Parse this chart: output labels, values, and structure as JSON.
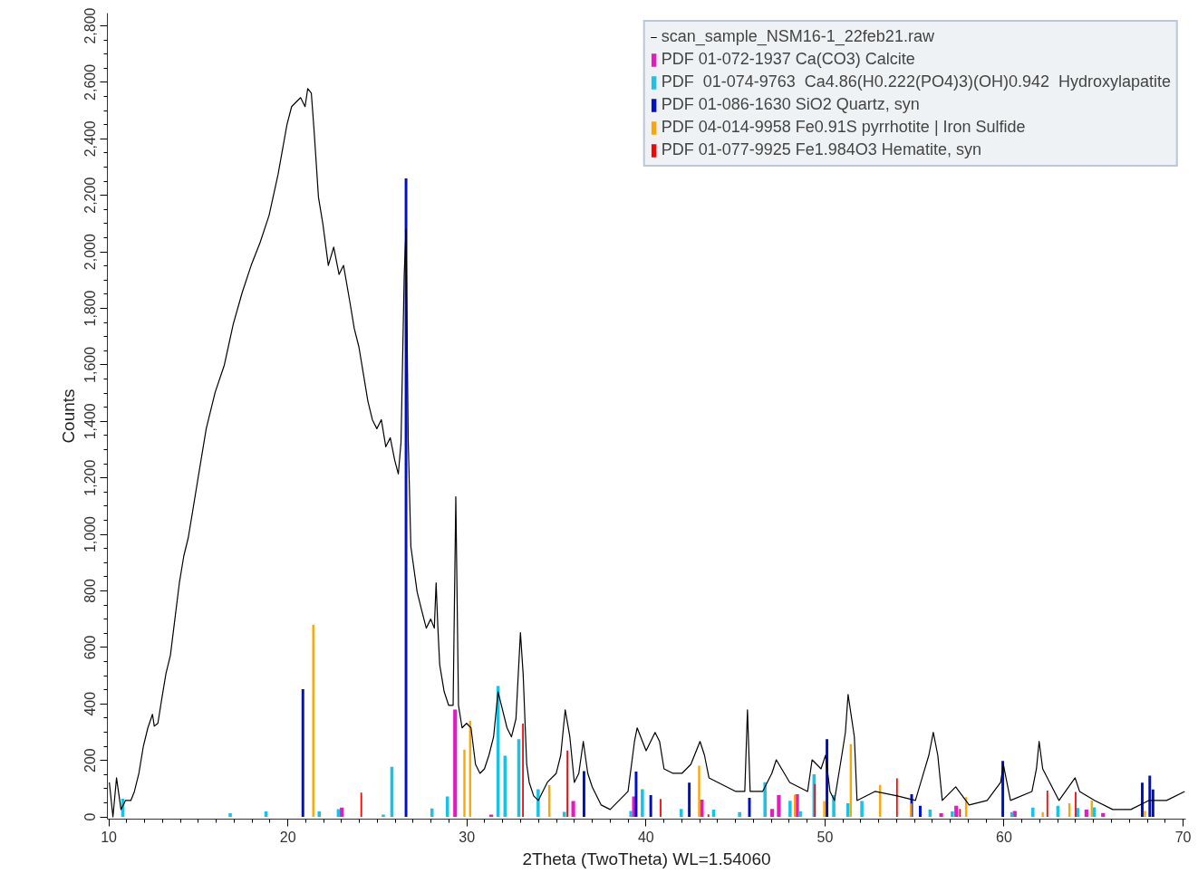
{
  "chart_data": {
    "type": "bar",
    "xlabel": "2Theta (TwoTheta) WL=1.54060",
    "ylabel": "Counts",
    "xlim": [
      9.92,
      70.15
    ],
    "ylim": [
      -8,
      2845
    ],
    "xticks": [
      10,
      20,
      30,
      40,
      50,
      60,
      70
    ],
    "yticks": [
      0,
      200,
      400,
      600,
      800,
      {
        "value": 1000,
        "label": "1,000"
      },
      {
        "value": 1200,
        "label": "1,200"
      },
      {
        "value": 1400,
        "label": "1,400"
      },
      {
        "value": 1600,
        "label": "1,600"
      },
      {
        "value": 1800,
        "label": "1,800"
      },
      {
        "value": 2000,
        "label": "2,000"
      },
      {
        "value": 2200,
        "label": "2,200"
      },
      {
        "value": 2400,
        "label": "2,400"
      },
      {
        "value": 2600,
        "label": "2,600"
      },
      {
        "value": 2800,
        "label": "2,800"
      }
    ],
    "legend": "top right",
    "series": [
      {
        "name": "scan_sample_NSM16-1_22feb21.raw",
        "type": "line",
        "color": "#000000",
        "x": [
          10.03,
          10.23,
          10.43,
          10.68,
          10.93,
          11.23,
          11.43,
          11.68,
          11.93,
          12.18,
          12.44,
          12.54,
          12.74,
          12.94,
          13.19,
          13.44,
          13.69,
          13.94,
          14.19,
          14.44,
          14.69,
          14.94,
          15.19,
          15.44,
          15.94,
          16.45,
          16.95,
          17.45,
          17.95,
          18.45,
          18.95,
          19.45,
          19.95,
          20.21,
          20.46,
          20.71,
          20.96,
          21.11,
          21.31,
          21.46,
          21.71,
          21.96,
          22.26,
          22.56,
          22.86,
          23.11,
          23.46,
          23.71,
          23.97,
          24.22,
          24.47,
          24.72,
          24.97,
          25.22,
          25.47,
          25.72,
          25.97,
          26.17,
          26.32,
          26.5,
          26.6,
          26.72,
          26.87,
          27.22,
          27.47,
          27.73,
          27.98,
          28.18,
          28.28,
          28.38,
          28.48,
          28.73,
          28.98,
          29.23,
          29.38,
          29.53,
          29.73,
          29.98,
          30.23,
          30.48,
          30.73,
          30.98,
          31.23,
          31.49,
          31.74,
          31.99,
          32.24,
          32.49,
          32.74,
          32.99,
          33.14,
          33.34,
          33.48,
          33.73,
          33.99,
          34.49,
          34.99,
          35.24,
          35.49,
          35.75,
          36.0,
          36.25,
          36.5,
          36.75,
          37.0,
          37.5,
          38.0,
          38.5,
          39.0,
          39.36,
          39.51,
          40.01,
          40.51,
          40.76,
          41.01,
          41.51,
          42.01,
          42.51,
          43.02,
          43.27,
          43.52,
          44.02,
          45.02,
          45.52,
          45.67,
          45.82,
          46.52,
          47.03,
          47.28,
          48.03,
          49.03,
          49.28,
          49.78,
          50.03,
          50.28,
          50.53,
          50.94,
          51.14,
          51.29,
          51.64,
          51.79,
          52.79,
          54.04,
          55.05,
          55.8,
          56.05,
          56.3,
          56.55,
          57.3,
          58.05,
          59.06,
          59.81,
          59.96,
          60.16,
          60.36,
          61.56,
          61.81,
          61.96,
          62.16,
          63.07,
          63.97,
          64.22,
          65.07,
          66.07,
          67.08,
          68.08,
          69.08,
          70.09
        ],
        "values": [
          122,
          0,
          138,
          26,
          58,
          58,
          90,
          154,
          250,
          315,
          363,
          321,
          331,
          411,
          507,
          572,
          700,
          828,
          924,
          989,
          1085,
          1182,
          1278,
          1374,
          1503,
          1599,
          1744,
          1856,
          1952,
          2033,
          2129,
          2273,
          2450,
          2514,
          2530,
          2546,
          2514,
          2578,
          2562,
          2434,
          2193,
          2097,
          1952,
          2017,
          1920,
          1952,
          1824,
          1728,
          1663,
          1567,
          1471,
          1406,
          1374,
          1406,
          1310,
          1342,
          1262,
          1214,
          1326,
          1920,
          2081,
          1342,
          957,
          796,
          732,
          668,
          700,
          668,
          828,
          668,
          539,
          443,
          395,
          395,
          1133,
          395,
          315,
          331,
          315,
          186,
          154,
          170,
          218,
          283,
          443,
          379,
          315,
          283,
          347,
          652,
          507,
          186,
          122,
          74,
          58,
          122,
          154,
          218,
          379,
          283,
          122,
          154,
          267,
          154,
          106,
          42,
          26,
          58,
          90,
          267,
          315,
          234,
          299,
          267,
          170,
          154,
          154,
          186,
          267,
          218,
          138,
          122,
          90,
          90,
          379,
          90,
          90,
          154,
          202,
          122,
          90,
          202,
          170,
          218,
          90,
          58,
          218,
          299,
          433,
          283,
          58,
          90,
          74,
          58,
          218,
          299,
          218,
          58,
          106,
          42,
          58,
          122,
          186,
          122,
          58,
          90,
          170,
          267,
          170,
          58,
          138,
          90,
          58,
          26,
          26,
          58,
          58,
          90
        ]
      },
      {
        "name": "PDF 01-072-1937 Ca(CO3) Calcite",
        "color": "#e619c3",
        "x": [
          23.01,
          29.34,
          31.36,
          35.94,
          39.33,
          43.12,
          47.05,
          47.42,
          48.44,
          56.49,
          57.33,
          60.6,
          64.6,
          65.53
        ],
        "values": [
          33,
          380,
          8,
          56,
          72,
          61,
          28,
          77,
          80,
          13,
          39,
          21,
          26,
          14
        ]
      },
      {
        "name": "PDF  01-074-9763  Ca4.86(H0.222(PO4)3)(OH)0.942  Hydroxylapatite",
        "color": "#19c3e6",
        "x": [
          10.78,
          16.78,
          18.78,
          21.75,
          22.82,
          25.33,
          25.81,
          28.05,
          28.91,
          31.74,
          32.13,
          32.9,
          33.98,
          35.44,
          39.16,
          39.8,
          41.97,
          43.78,
          45.23,
          46.65,
          48.05,
          48.62,
          49.39,
          50.49,
          51.28,
          52.06,
          55.87,
          57.11,
          60.44,
          61.61,
          63.01,
          64.11,
          65.04
        ],
        "values": [
          64,
          13,
          19,
          19,
          27,
          8,
          177,
          30,
          72,
          463,
          216,
          275,
          98,
          18,
          21,
          98,
          28,
          26,
          17,
          123,
          57,
          20,
          151,
          77,
          48,
          56,
          26,
          19,
          17,
          33,
          39,
          31,
          34
        ]
      },
      {
        "name": "PDF 01-086-1630 SiO2 Quartz, syn",
        "color": "#0010c8",
        "x": [
          20.84,
          26.6,
          36.54,
          39.45,
          40.27,
          42.42,
          45.78,
          50.11,
          54.84,
          55.32,
          59.93,
          67.72,
          68.14,
          68.32
        ],
        "values": [
          452,
          2260,
          162,
          160,
          77,
          121,
          67,
          275,
          80,
          39,
          198,
          121,
          146,
          97
        ]
      },
      {
        "name": "PDF 04-014-9958 Fe0.91S pyrrhotite | Iron Sulfide",
        "color": "#ffa500",
        "x": [
          21.42,
          29.86,
          30.18,
          34.6,
          42.97,
          48.32,
          49.96,
          51.44,
          53.08,
          54.8,
          57.88,
          62.16,
          63.65,
          64.9,
          67.87
        ],
        "values": [
          680,
          238,
          340,
          112,
          181,
          78,
          56,
          257,
          113,
          47,
          70,
          17,
          48,
          58,
          21
        ]
      },
      {
        "name": "PDF 01-077-9925 Fe1.984O3 Hematite, syn",
        "color": "#ff0000",
        "x": [
          24.1,
          33.13,
          35.61,
          40.82,
          43.49,
          49.44,
          54.02,
          57.54,
          62.42,
          64.0
        ],
        "values": [
          86,
          330,
          235,
          63,
          9,
          116,
          136,
          28,
          93,
          88
        ]
      }
    ]
  }
}
